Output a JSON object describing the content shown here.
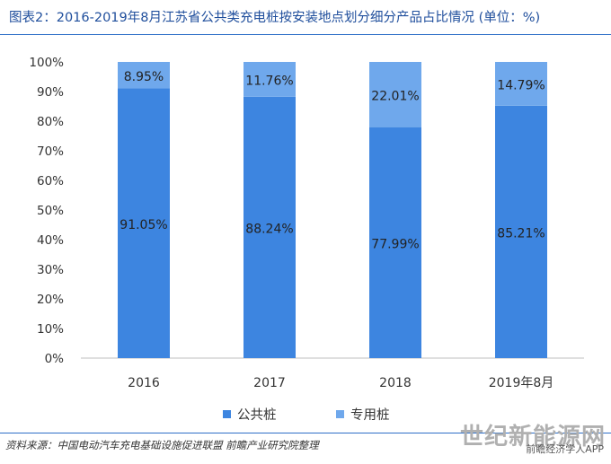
{
  "title": "图表2：2016-2019年8月江苏省公共类充电桩按安装地点划分细分产品占比情况 (单位：%)",
  "source": "资料来源：中国电动汽车充电基础设施促进联盟 前瞻产业研究院整理",
  "brand": "世纪新能源网",
  "app_label": "前瞻经济学人APP",
  "colors": {
    "public": "#3d85e0",
    "dedicated": "#6fa8ec"
  },
  "chart_data": {
    "type": "bar",
    "stacked": true,
    "categories": [
      "2016",
      "2017",
      "2018",
      "2019年8月"
    ],
    "series": [
      {
        "name": "公共桩",
        "values": [
          91.05,
          88.24,
          77.99,
          85.21
        ],
        "labels": [
          "91.05%",
          "88.24%",
          "77.99%",
          "85.21%"
        ]
      },
      {
        "name": "专用桩",
        "values": [
          8.95,
          11.76,
          22.01,
          14.79
        ],
        "labels": [
          "8.95%",
          "11.76%",
          "22.01%",
          "14.79%"
        ]
      }
    ],
    "yticks": [
      "0%",
      "10%",
      "20%",
      "30%",
      "40%",
      "50%",
      "60%",
      "70%",
      "80%",
      "90%",
      "100%"
    ],
    "ylim": [
      0,
      100
    ],
    "grid": false,
    "legend": "bottom"
  }
}
